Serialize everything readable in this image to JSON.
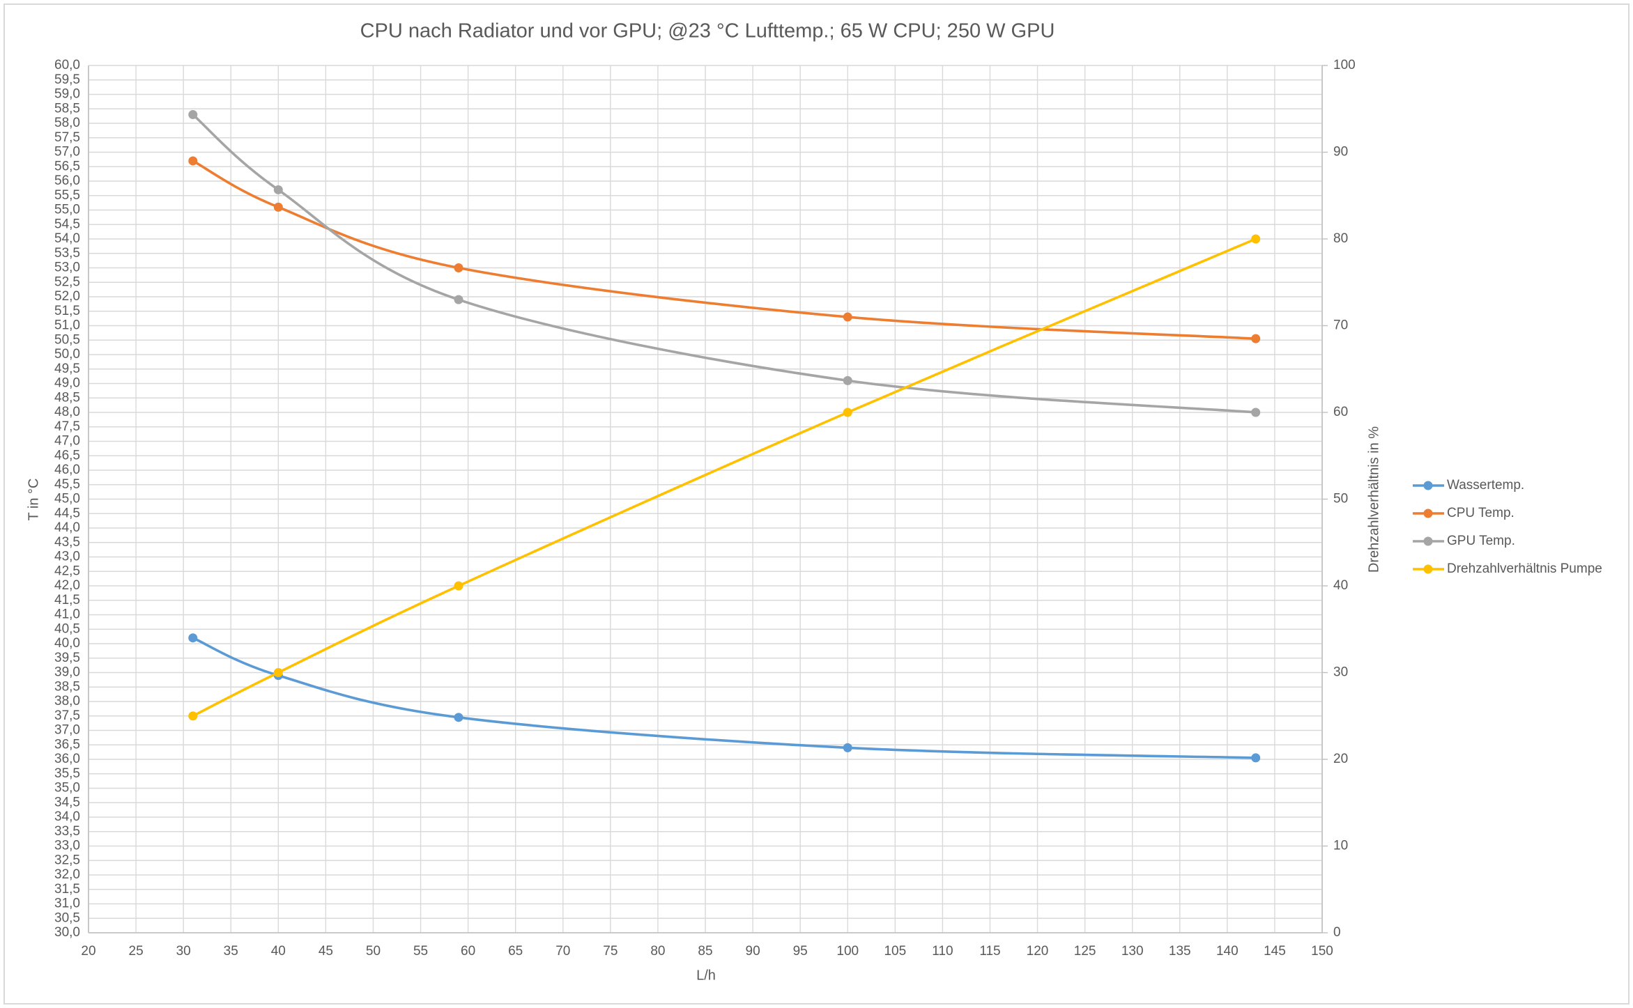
{
  "chart_data": {
    "type": "scatter",
    "smooth": true,
    "grid": true,
    "legend": "right",
    "title": "CPU nach Radiator und vor GPU; @23 °C Lufttemp.; 65 W CPU; 250 W GPU",
    "x_label": "L/h",
    "y_label": "T in °C",
    "y2_label": "Drehzahlverhältnis in %",
    "x": [
      31,
      40,
      59,
      100,
      143
    ],
    "series": [
      {
        "name": "Wassertemp.",
        "color": "#5b9bd5",
        "values": [
          40.2,
          38.9,
          37.45,
          36.4,
          36.05
        ]
      },
      {
        "name": "CPU Temp.",
        "color": "#ed7d31",
        "values": [
          56.7,
          55.1,
          53.0,
          51.3,
          50.55
        ]
      },
      {
        "name": "GPU Temp.",
        "color": "#a5a5a5",
        "values": [
          58.3,
          55.7,
          51.9,
          49.1,
          48.0
        ]
      },
      {
        "name": "Drehzahlverhältnis Pumpe",
        "color": "#ffc000",
        "axis": "y2",
        "values": [
          25,
          30,
          40,
          60,
          80
        ]
      }
    ],
    "xlim": [
      20,
      150
    ],
    "xticks": [
      20,
      25,
      30,
      35,
      40,
      45,
      50,
      55,
      60,
      65,
      70,
      75,
      80,
      85,
      90,
      95,
      100,
      105,
      110,
      115,
      120,
      125,
      130,
      135,
      140,
      145,
      150
    ],
    "ylim": [
      30,
      60
    ],
    "yticks": [
      {
        "value": 30,
        "label": "30,0"
      },
      {
        "value": 30.5,
        "label": "30,5"
      },
      {
        "value": 31,
        "label": "31,0"
      },
      {
        "value": 31.5,
        "label": "31,5"
      },
      {
        "value": 32,
        "label": "32,0"
      },
      {
        "value": 32.5,
        "label": "32,5"
      },
      {
        "value": 33,
        "label": "33,0"
      },
      {
        "value": 33.5,
        "label": "33,5"
      },
      {
        "value": 34,
        "label": "34,0"
      },
      {
        "value": 34.5,
        "label": "34,5"
      },
      {
        "value": 35,
        "label": "35,0"
      },
      {
        "value": 35.5,
        "label": "35,5"
      },
      {
        "value": 36,
        "label": "36,0"
      },
      {
        "value": 36.5,
        "label": "36,5"
      },
      {
        "value": 37,
        "label": "37,0"
      },
      {
        "value": 37.5,
        "label": "37,5"
      },
      {
        "value": 38,
        "label": "38,0"
      },
      {
        "value": 38.5,
        "label": "38,5"
      },
      {
        "value": 39,
        "label": "39,0"
      },
      {
        "value": 39.5,
        "label": "39,5"
      },
      {
        "value": 40,
        "label": "40,0"
      },
      {
        "value": 40.5,
        "label": "40,5"
      },
      {
        "value": 41,
        "label": "41,0"
      },
      {
        "value": 41.5,
        "label": "41,5"
      },
      {
        "value": 42,
        "label": "42,0"
      },
      {
        "value": 42.5,
        "label": "42,5"
      },
      {
        "value": 43,
        "label": "43,0"
      },
      {
        "value": 43.5,
        "label": "43,5"
      },
      {
        "value": 44,
        "label": "44,0"
      },
      {
        "value": 44.5,
        "label": "44,5"
      },
      {
        "value": 45,
        "label": "45,0"
      },
      {
        "value": 45.5,
        "label": "45,5"
      },
      {
        "value": 46,
        "label": "46,0"
      },
      {
        "value": 46.5,
        "label": "46,5"
      },
      {
        "value": 47,
        "label": "47,0"
      },
      {
        "value": 47.5,
        "label": "47,5"
      },
      {
        "value": 48,
        "label": "48,0"
      },
      {
        "value": 48.5,
        "label": "48,5"
      },
      {
        "value": 49,
        "label": "49,0"
      },
      {
        "value": 49.5,
        "label": "49,5"
      },
      {
        "value": 50,
        "label": "50,0"
      },
      {
        "value": 50.5,
        "label": "50,5"
      },
      {
        "value": 51,
        "label": "51,0"
      },
      {
        "value": 51.5,
        "label": "51,5"
      },
      {
        "value": 52,
        "label": "52,0"
      },
      {
        "value": 52.5,
        "label": "52,5"
      },
      {
        "value": 53,
        "label": "53,0"
      },
      {
        "value": 53.5,
        "label": "53,5"
      },
      {
        "value": 54,
        "label": "54,0"
      },
      {
        "value": 54.5,
        "label": "54,5"
      },
      {
        "value": 55,
        "label": "55,0"
      },
      {
        "value": 55.5,
        "label": "55,5"
      },
      {
        "value": 56,
        "label": "56,0"
      },
      {
        "value": 56.5,
        "label": "56,5"
      },
      {
        "value": 57,
        "label": "57,0"
      },
      {
        "value": 57.5,
        "label": "57,5"
      },
      {
        "value": 58,
        "label": "58,0"
      },
      {
        "value": 58.5,
        "label": "58,5"
      },
      {
        "value": 59,
        "label": "59,0"
      },
      {
        "value": 59.5,
        "label": "59,5"
      },
      {
        "value": 60,
        "label": "60,0"
      }
    ],
    "y2lim": [
      0,
      100
    ],
    "y2ticks": [
      0,
      10,
      20,
      30,
      40,
      50,
      60,
      70,
      80,
      90,
      100
    ]
  }
}
